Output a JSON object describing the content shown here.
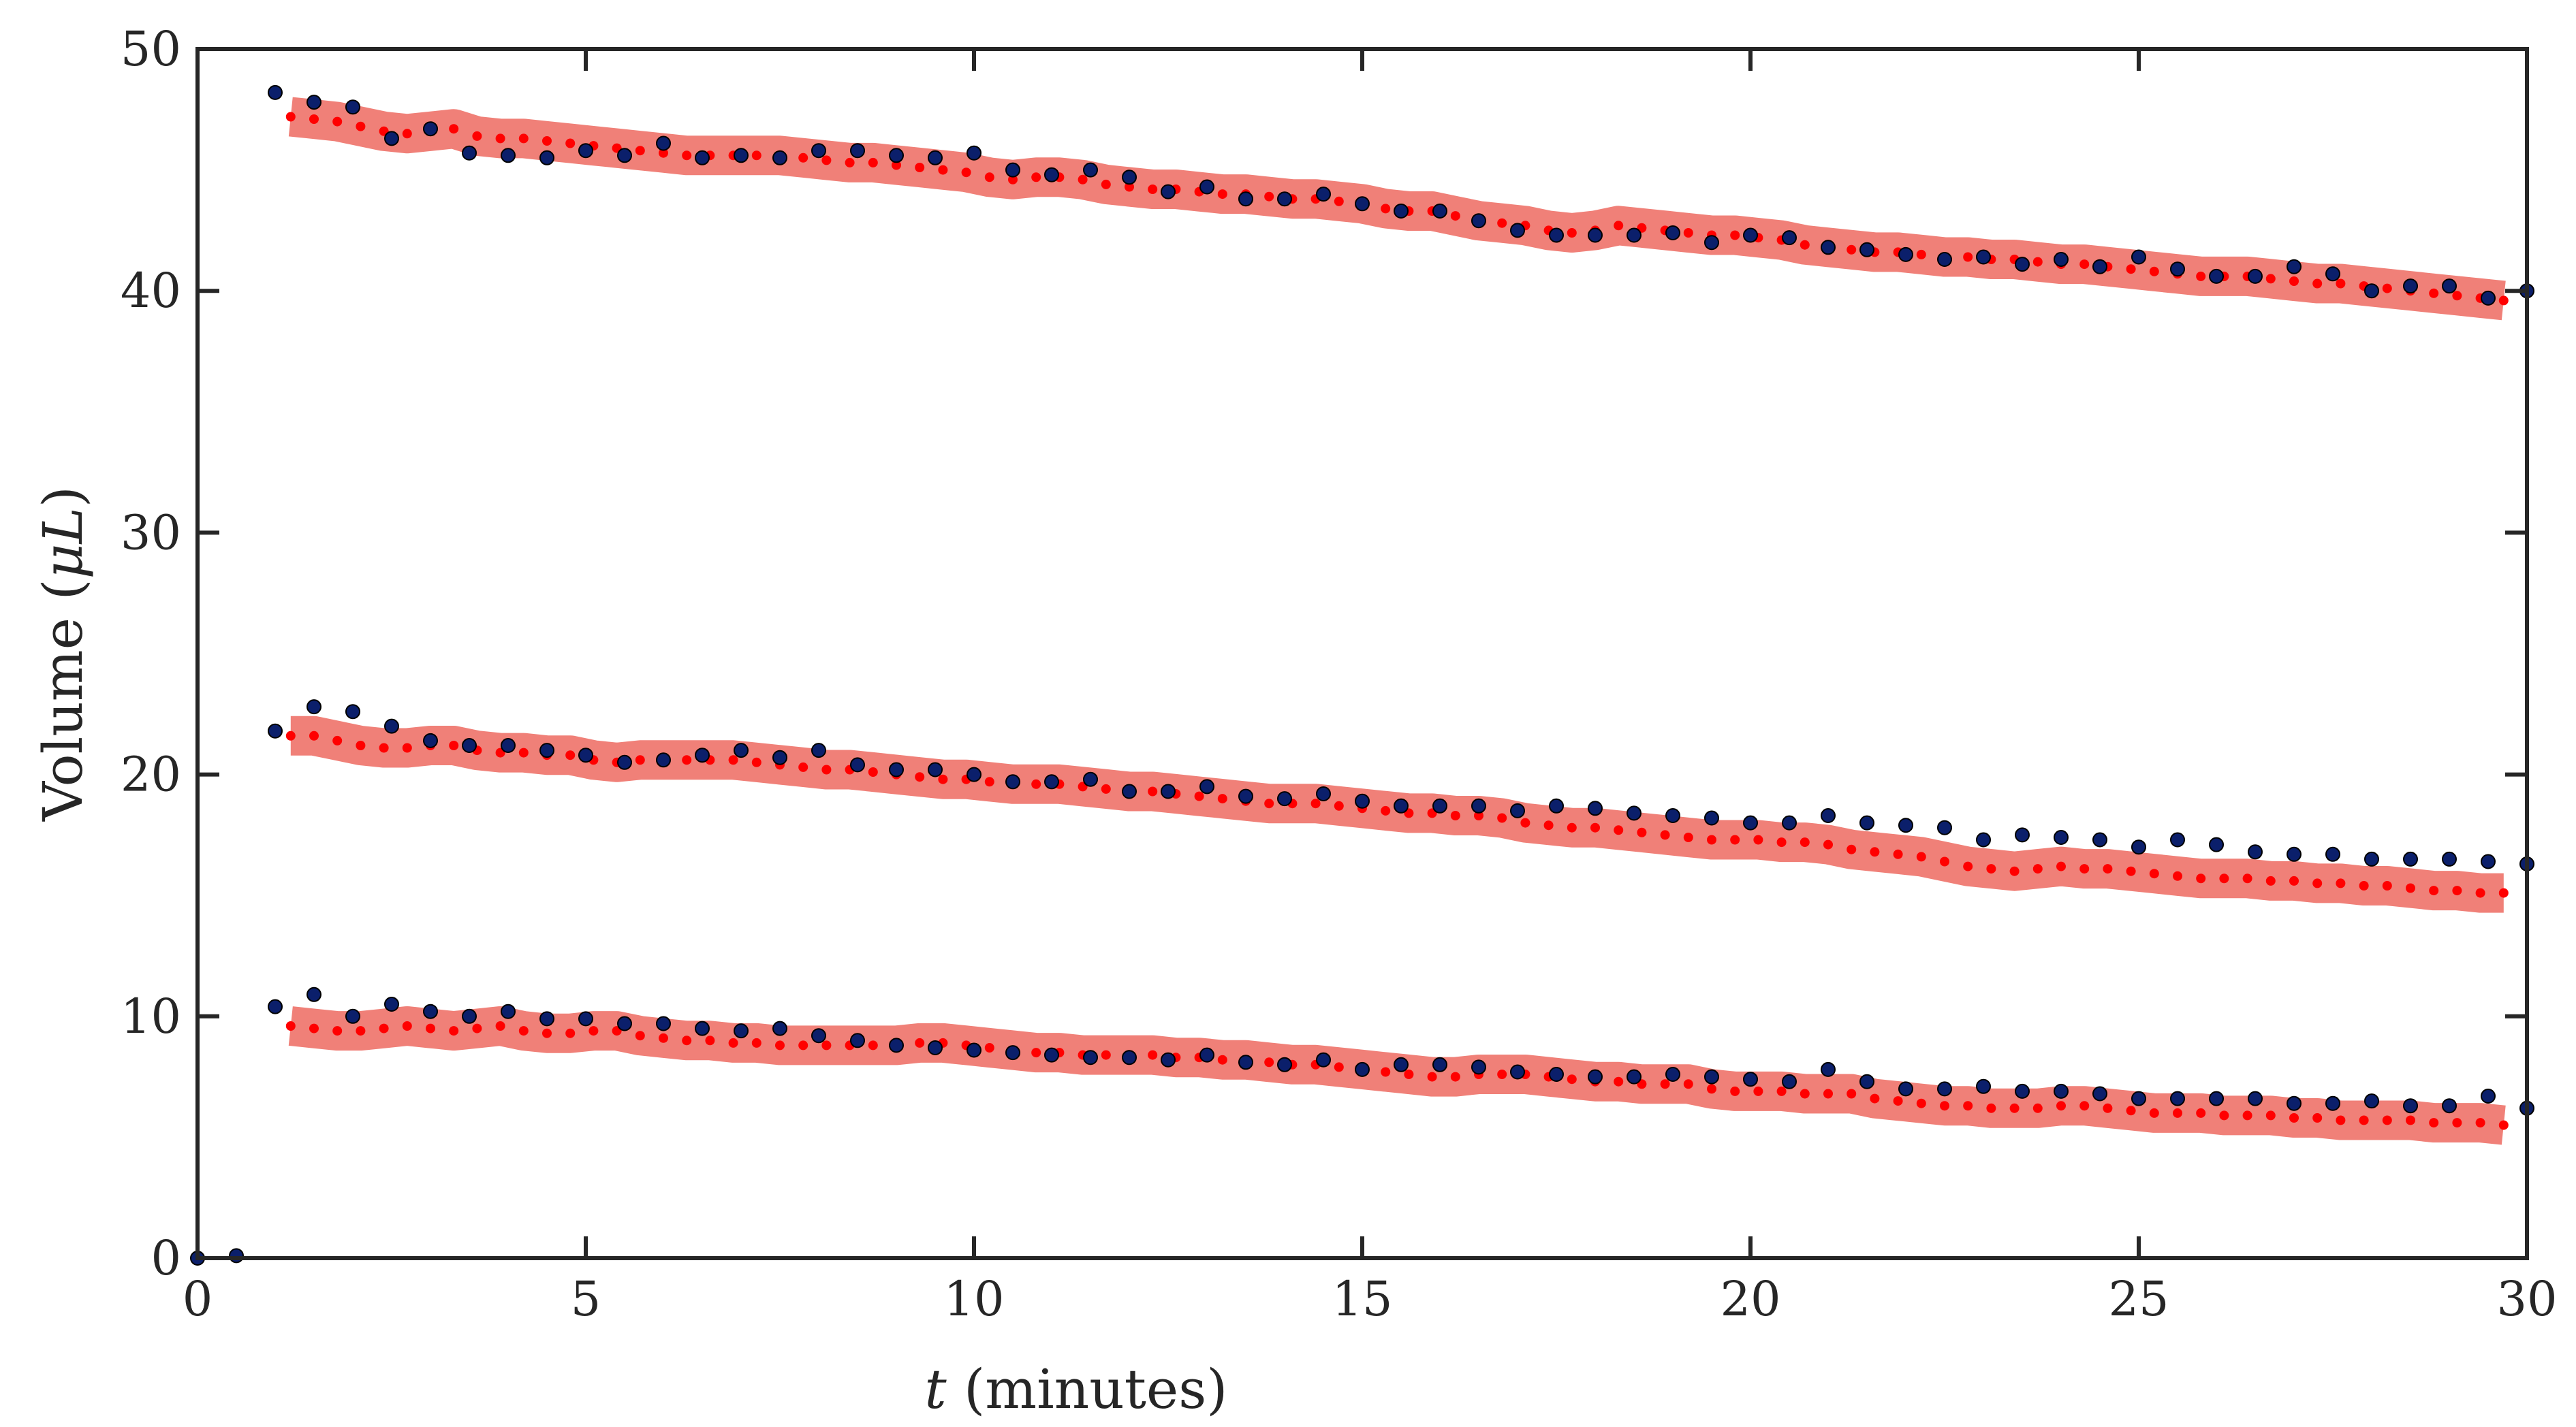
{
  "chart_data": {
    "type": "scatter",
    "xlabel": {
      "var": "t",
      "rest": " (minutes)"
    },
    "ylabel": {
      "pre": "Volume (",
      "var": "μL",
      "post": ")"
    },
    "xlim": [
      0,
      30
    ],
    "ylim": [
      0,
      50
    ],
    "xticks": [
      "0",
      "5",
      "10",
      "15",
      "20",
      "25",
      "30"
    ],
    "yticks": [
      "0",
      "10",
      "20",
      "30",
      "40",
      "50"
    ],
    "grid": false,
    "legend": "none",
    "colors": {
      "measured": "#0b1f6b",
      "model": "#ff0000",
      "band": "#f08078",
      "axis": "#262626"
    },
    "series": [
      {
        "measured_x": [
          0.0,
          0.5,
          1.0,
          1.5,
          2.0,
          2.5,
          3.0,
          3.5,
          4.0,
          4.5,
          5.0,
          5.5,
          6.0,
          6.5,
          7.0,
          7.5,
          8.0,
          8.5,
          9.0,
          9.5,
          10.0,
          10.5,
          11.0,
          11.5,
          12.0,
          12.5,
          13.0,
          13.5,
          14.0,
          14.5,
          15.0,
          15.5,
          16.0,
          16.5,
          17.0,
          17.5,
          18.0,
          18.5,
          19.0,
          19.5,
          20.0,
          20.5,
          21.0,
          21.5,
          22.0,
          22.5,
          23.0,
          23.5,
          24.0,
          24.5,
          25.0,
          25.5,
          26.0,
          26.5,
          27.0,
          27.5,
          28.0,
          28.5,
          29.0,
          29.5,
          30.0
        ],
        "measured_y": [
          0.0,
          0.1,
          48.2,
          47.8,
          47.6,
          46.3,
          46.7,
          45.7,
          45.6,
          45.5,
          45.8,
          45.6,
          46.1,
          45.5,
          45.6,
          45.5,
          45.8,
          45.8,
          45.6,
          45.5,
          45.7,
          45.0,
          44.8,
          45.0,
          44.7,
          44.1,
          44.3,
          43.8,
          43.8,
          44.0,
          43.6,
          43.3,
          43.3,
          42.9,
          42.5,
          42.3,
          42.3,
          42.3,
          42.4,
          42.0,
          42.3,
          42.2,
          41.8,
          41.7,
          41.5,
          41.3,
          41.4,
          41.1,
          41.3,
          41.0,
          41.4,
          40.9,
          40.6,
          40.6,
          41.0,
          40.7,
          40.0,
          40.2,
          40.2,
          39.7,
          40.0
        ],
        "model_x": [
          1.2,
          1.5,
          1.8,
          2.1,
          2.4,
          2.7,
          3.0,
          3.3,
          3.6,
          3.9,
          4.2,
          4.5,
          4.8,
          5.1,
          5.4,
          5.7,
          6.0,
          6.3,
          6.6,
          6.9,
          7.2,
          7.5,
          7.8,
          8.1,
          8.4,
          8.7,
          9.0,
          9.3,
          9.6,
          9.9,
          10.2,
          10.5,
          10.8,
          11.1,
          11.4,
          11.7,
          12.0,
          12.3,
          12.6,
          12.9,
          13.2,
          13.5,
          13.8,
          14.1,
          14.4,
          14.7,
          15.0,
          15.3,
          15.6,
          15.9,
          16.2,
          16.5,
          16.8,
          17.1,
          17.4,
          17.7,
          18.0,
          18.3,
          18.6,
          18.9,
          19.2,
          19.5,
          19.8,
          20.1,
          20.4,
          20.7,
          21.0,
          21.3,
          21.6,
          21.9,
          22.2,
          22.5,
          22.8,
          23.1,
          23.4,
          23.7,
          24.0,
          24.3,
          24.6,
          24.9,
          25.2,
          25.5,
          25.8,
          26.1,
          26.4,
          26.7,
          27.0,
          27.3,
          27.6,
          27.9,
          28.2,
          28.5,
          28.8,
          29.1,
          29.4,
          29.7
        ],
        "model_y": [
          47.2,
          47.1,
          47.0,
          46.8,
          46.6,
          46.5,
          46.6,
          46.7,
          46.4,
          46.3,
          46.3,
          46.2,
          46.1,
          46.0,
          45.9,
          45.8,
          45.7,
          45.6,
          45.6,
          45.6,
          45.6,
          45.6,
          45.5,
          45.4,
          45.3,
          45.3,
          45.2,
          45.1,
          45.0,
          44.9,
          44.7,
          44.6,
          44.7,
          44.7,
          44.6,
          44.4,
          44.3,
          44.2,
          44.2,
          44.1,
          44.0,
          44.0,
          43.9,
          43.8,
          43.8,
          43.7,
          43.6,
          43.4,
          43.3,
          43.3,
          43.1,
          42.9,
          42.8,
          42.7,
          42.5,
          42.4,
          42.5,
          42.7,
          42.6,
          42.5,
          42.4,
          42.3,
          42.3,
          42.2,
          42.1,
          41.9,
          41.8,
          41.7,
          41.6,
          41.6,
          41.5,
          41.4,
          41.4,
          41.3,
          41.3,
          41.2,
          41.1,
          41.1,
          41.0,
          40.9,
          40.8,
          40.7,
          40.6,
          40.6,
          40.6,
          40.5,
          40.4,
          40.3,
          40.3,
          40.2,
          40.1,
          40.0,
          39.9,
          39.8,
          39.7,
          39.6
        ]
      },
      {
        "measured_x": [
          1.0,
          1.5,
          2.0,
          2.5,
          3.0,
          3.5,
          4.0,
          4.5,
          5.0,
          5.5,
          6.0,
          6.5,
          7.0,
          7.5,
          8.0,
          8.5,
          9.0,
          9.5,
          10.0,
          10.5,
          11.0,
          11.5,
          12.0,
          12.5,
          13.0,
          13.5,
          14.0,
          14.5,
          15.0,
          15.5,
          16.0,
          16.5,
          17.0,
          17.5,
          18.0,
          18.5,
          19.0,
          19.5,
          20.0,
          20.5,
          21.0,
          21.5,
          22.0,
          22.5,
          23.0,
          23.5,
          24.0,
          24.5,
          25.0,
          25.5,
          26.0,
          26.5,
          27.0,
          27.5,
          28.0,
          28.5,
          29.0,
          29.5,
          30.0
        ],
        "measured_y": [
          21.8,
          22.8,
          22.6,
          22.0,
          21.4,
          21.2,
          21.2,
          21.0,
          20.8,
          20.5,
          20.6,
          20.8,
          21.0,
          20.7,
          21.0,
          20.4,
          20.2,
          20.2,
          20.0,
          19.7,
          19.7,
          19.8,
          19.3,
          19.3,
          19.5,
          19.1,
          19.0,
          19.2,
          18.9,
          18.7,
          18.7,
          18.7,
          18.5,
          18.7,
          18.6,
          18.4,
          18.3,
          18.2,
          18.0,
          18.0,
          18.3,
          18.0,
          17.9,
          17.8,
          17.3,
          17.5,
          17.4,
          17.3,
          17.0,
          17.3,
          17.1,
          16.8,
          16.7,
          16.7,
          16.5,
          16.5,
          16.5,
          16.4,
          16.3
        ],
        "model_x": [
          1.2,
          1.5,
          1.8,
          2.1,
          2.4,
          2.7,
          3.0,
          3.3,
          3.6,
          3.9,
          4.2,
          4.5,
          4.8,
          5.1,
          5.4,
          5.7,
          6.0,
          6.3,
          6.6,
          6.9,
          7.2,
          7.5,
          7.8,
          8.1,
          8.4,
          8.7,
          9.0,
          9.3,
          9.6,
          9.9,
          10.2,
          10.5,
          10.8,
          11.1,
          11.4,
          11.7,
          12.0,
          12.3,
          12.6,
          12.9,
          13.2,
          13.5,
          13.8,
          14.1,
          14.4,
          14.7,
          15.0,
          15.3,
          15.6,
          15.9,
          16.2,
          16.5,
          16.8,
          17.1,
          17.4,
          17.7,
          18.0,
          18.3,
          18.6,
          18.9,
          19.2,
          19.5,
          19.8,
          20.1,
          20.4,
          20.7,
          21.0,
          21.3,
          21.6,
          21.9,
          22.2,
          22.5,
          22.8,
          23.1,
          23.4,
          23.7,
          24.0,
          24.3,
          24.6,
          24.9,
          25.2,
          25.5,
          25.8,
          26.1,
          26.4,
          26.7,
          27.0,
          27.3,
          27.6,
          27.9,
          28.2,
          28.5,
          28.8,
          29.1,
          29.4,
          29.7
        ],
        "model_y": [
          21.6,
          21.6,
          21.4,
          21.2,
          21.1,
          21.1,
          21.2,
          21.2,
          21.0,
          20.9,
          20.9,
          20.8,
          20.8,
          20.6,
          20.5,
          20.6,
          20.6,
          20.6,
          20.6,
          20.6,
          20.5,
          20.4,
          20.3,
          20.2,
          20.2,
          20.1,
          20.0,
          19.9,
          19.8,
          19.8,
          19.7,
          19.6,
          19.6,
          19.6,
          19.5,
          19.4,
          19.3,
          19.3,
          19.2,
          19.1,
          19.0,
          18.9,
          18.8,
          18.8,
          18.8,
          18.7,
          18.6,
          18.5,
          18.4,
          18.4,
          18.3,
          18.3,
          18.2,
          18.0,
          17.9,
          17.8,
          17.8,
          17.7,
          17.6,
          17.5,
          17.4,
          17.3,
          17.3,
          17.3,
          17.2,
          17.2,
          17.1,
          16.9,
          16.8,
          16.7,
          16.6,
          16.4,
          16.2,
          16.1,
          16.0,
          16.1,
          16.2,
          16.1,
          16.1,
          16.0,
          15.9,
          15.8,
          15.7,
          15.7,
          15.7,
          15.6,
          15.6,
          15.5,
          15.5,
          15.4,
          15.4,
          15.3,
          15.2,
          15.2,
          15.1,
          15.1
        ]
      },
      {
        "measured_x": [
          1.0,
          1.5,
          2.0,
          2.5,
          3.0,
          3.5,
          4.0,
          4.5,
          5.0,
          5.5,
          6.0,
          6.5,
          7.0,
          7.5,
          8.0,
          8.5,
          9.0,
          9.5,
          10.0,
          10.5,
          11.0,
          11.5,
          12.0,
          12.5,
          13.0,
          13.5,
          14.0,
          14.5,
          15.0,
          15.5,
          16.0,
          16.5,
          17.0,
          17.5,
          18.0,
          18.5,
          19.0,
          19.5,
          20.0,
          20.5,
          21.0,
          21.5,
          22.0,
          22.5,
          23.0,
          23.5,
          24.0,
          24.5,
          25.0,
          25.5,
          26.0,
          26.5,
          27.0,
          27.5,
          28.0,
          28.5,
          29.0,
          29.5,
          30.0
        ],
        "measured_y": [
          10.4,
          10.9,
          10.0,
          10.5,
          10.2,
          10.0,
          10.2,
          9.9,
          9.9,
          9.7,
          9.7,
          9.5,
          9.4,
          9.5,
          9.2,
          9.0,
          8.8,
          8.7,
          8.6,
          8.5,
          8.4,
          8.3,
          8.3,
          8.2,
          8.4,
          8.1,
          8.0,
          8.2,
          7.8,
          8.0,
          8.0,
          7.9,
          7.7,
          7.6,
          7.5,
          7.5,
          7.6,
          7.5,
          7.4,
          7.3,
          7.8,
          7.3,
          7.0,
          7.0,
          7.1,
          6.9,
          6.9,
          6.8,
          6.6,
          6.6,
          6.6,
          6.6,
          6.4,
          6.4,
          6.5,
          6.3,
          6.3,
          6.7,
          6.2
        ],
        "model_x": [
          1.2,
          1.5,
          1.8,
          2.1,
          2.4,
          2.7,
          3.0,
          3.3,
          3.6,
          3.9,
          4.2,
          4.5,
          4.8,
          5.1,
          5.4,
          5.7,
          6.0,
          6.3,
          6.6,
          6.9,
          7.2,
          7.5,
          7.8,
          8.1,
          8.4,
          8.7,
          9.0,
          9.3,
          9.6,
          9.9,
          10.2,
          10.5,
          10.8,
          11.1,
          11.4,
          11.7,
          12.0,
          12.3,
          12.6,
          12.9,
          13.2,
          13.5,
          13.8,
          14.1,
          14.4,
          14.7,
          15.0,
          15.3,
          15.6,
          15.9,
          16.2,
          16.5,
          16.8,
          17.1,
          17.4,
          17.7,
          18.0,
          18.3,
          18.6,
          18.9,
          19.2,
          19.5,
          19.8,
          20.1,
          20.4,
          20.7,
          21.0,
          21.3,
          21.6,
          21.9,
          22.2,
          22.5,
          22.8,
          23.1,
          23.4,
          23.7,
          24.0,
          24.3,
          24.6,
          24.9,
          25.2,
          25.5,
          25.8,
          26.1,
          26.4,
          26.7,
          27.0,
          27.3,
          27.6,
          27.9,
          28.2,
          28.5,
          28.8,
          29.1,
          29.4,
          29.7
        ],
        "model_y": [
          9.6,
          9.5,
          9.4,
          9.4,
          9.5,
          9.6,
          9.5,
          9.4,
          9.5,
          9.6,
          9.4,
          9.3,
          9.3,
          9.4,
          9.4,
          9.2,
          9.1,
          9.0,
          9.0,
          8.9,
          8.9,
          8.8,
          8.8,
          8.8,
          8.8,
          8.8,
          8.8,
          8.9,
          8.9,
          8.8,
          8.7,
          8.6,
          8.5,
          8.5,
          8.4,
          8.4,
          8.4,
          8.4,
          8.3,
          8.3,
          8.2,
          8.2,
          8.1,
          8.0,
          8.0,
          7.9,
          7.8,
          7.7,
          7.6,
          7.5,
          7.5,
          7.6,
          7.6,
          7.6,
          7.5,
          7.4,
          7.3,
          7.3,
          7.2,
          7.2,
          7.2,
          7.0,
          6.9,
          6.9,
          6.9,
          6.8,
          6.8,
          6.8,
          6.6,
          6.5,
          6.4,
          6.3,
          6.3,
          6.2,
          6.2,
          6.2,
          6.3,
          6.3,
          6.2,
          6.1,
          6.0,
          6.0,
          6.0,
          5.9,
          5.9,
          5.9,
          5.8,
          5.8,
          5.7,
          5.7,
          5.7,
          5.7,
          5.6,
          5.6,
          5.6,
          5.5
        ]
      }
    ]
  }
}
